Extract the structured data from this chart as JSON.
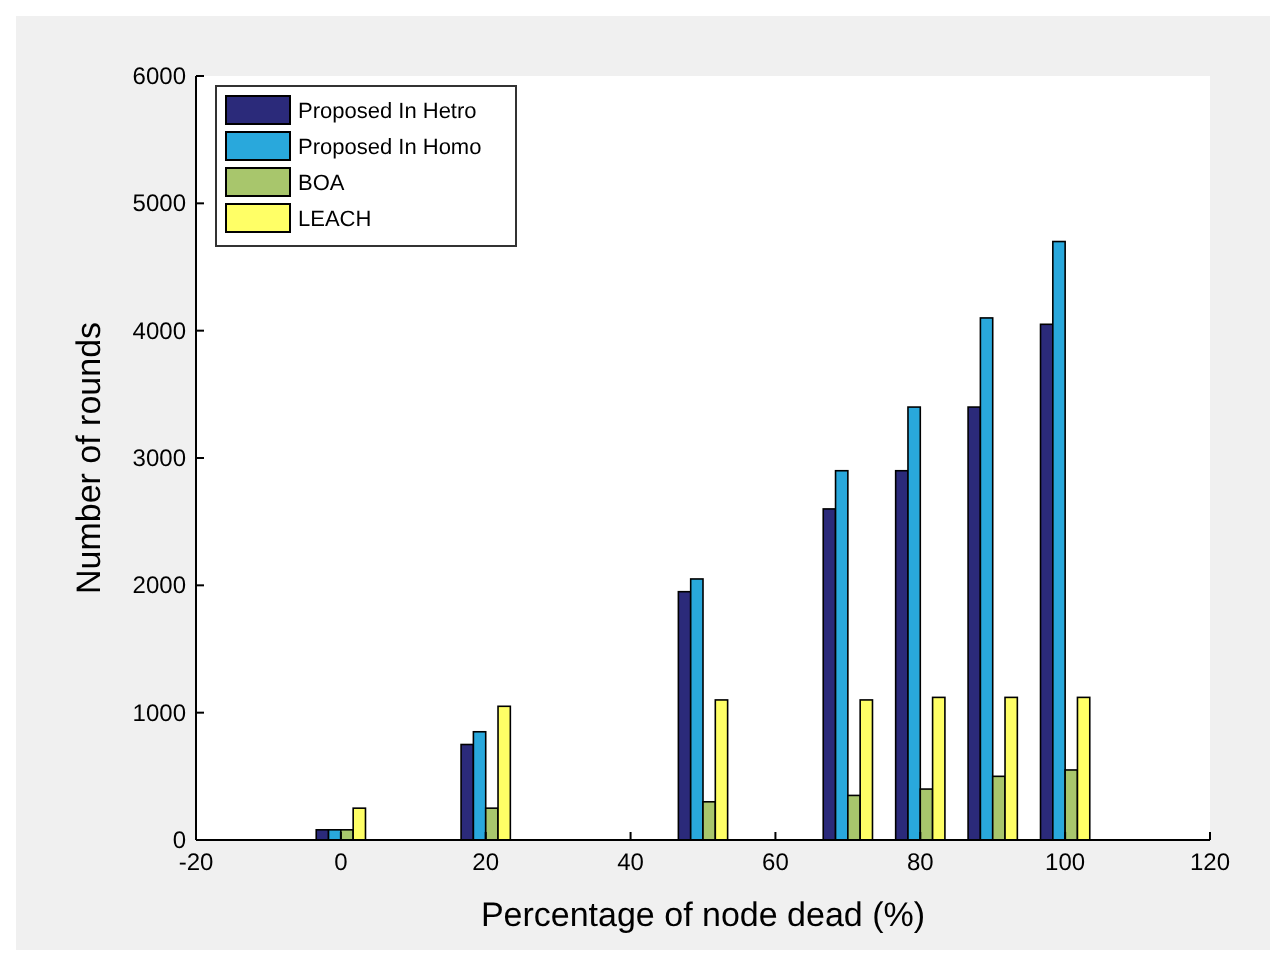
{
  "chart_data": {
    "type": "bar",
    "xlabel": "Percentage of node dead (%)",
    "ylabel": "Number of rounds",
    "x": [
      0,
      20,
      50,
      70,
      80,
      90,
      100
    ],
    "series": [
      {
        "name": "Proposed In Hetro",
        "color": "#2b2a7a",
        "values": [
          80,
          750,
          1950,
          2600,
          2900,
          3400,
          4050
        ]
      },
      {
        "name": "Proposed In Homo",
        "color": "#29a8dc",
        "values": [
          80,
          850,
          2050,
          2900,
          3400,
          4100,
          4700
        ]
      },
      {
        "name": "BOA",
        "color": "#a8c66c",
        "values": [
          80,
          250,
          300,
          350,
          400,
          500,
          550
        ]
      },
      {
        "name": "LEACH",
        "color": "#ffff66",
        "values": [
          250,
          1050,
          1100,
          1100,
          1120,
          1120,
          1120
        ]
      }
    ],
    "xlim": [
      -20,
      120
    ],
    "xticks": [
      -20,
      0,
      20,
      40,
      60,
      80,
      100,
      120
    ],
    "ylim": [
      0,
      6000
    ],
    "yticks": [
      0,
      1000,
      2000,
      3000,
      4000,
      5000,
      6000
    ],
    "legend": "top left",
    "grid": false
  }
}
